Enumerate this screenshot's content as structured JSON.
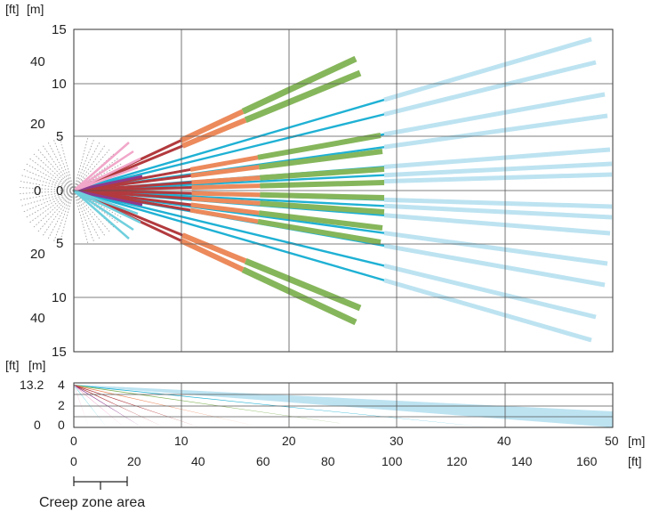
{
  "top_view": {
    "unit_ft": "[ft]",
    "unit_m": "[m]",
    "y_m_labels": [
      "15",
      "10",
      "5",
      "0",
      "5",
      "10",
      "15"
    ],
    "y_ft_labels": [
      "40",
      "20",
      "0",
      "20",
      "40"
    ]
  },
  "side_view": {
    "unit_ft": "[ft]",
    "unit_m": "[m]",
    "y_ft_label": "13.2",
    "y_m_labels": [
      "4",
      "2",
      "0"
    ],
    "y_ft_zero": "0"
  },
  "x_axis": {
    "m_labels": [
      "0",
      "10",
      "20",
      "30",
      "40",
      "50"
    ],
    "m_unit": "[m]",
    "ft_labels": [
      "0",
      "20",
      "40",
      "60",
      "80",
      "100",
      "120",
      "140",
      "160"
    ],
    "ft_unit": "[ft]"
  },
  "creep_zone": {
    "label": "Creep zone area"
  },
  "colors": {
    "pink": "#f1a7c9",
    "cyan": "#6fcfdd",
    "purple": "#8e3a8e",
    "darkred": "#b23a3e",
    "orange": "#ec8a5c",
    "green": "#86b65b",
    "blue": "#1fb1d4",
    "lightblue": "#bde3f1",
    "grid": "#555555"
  }
}
